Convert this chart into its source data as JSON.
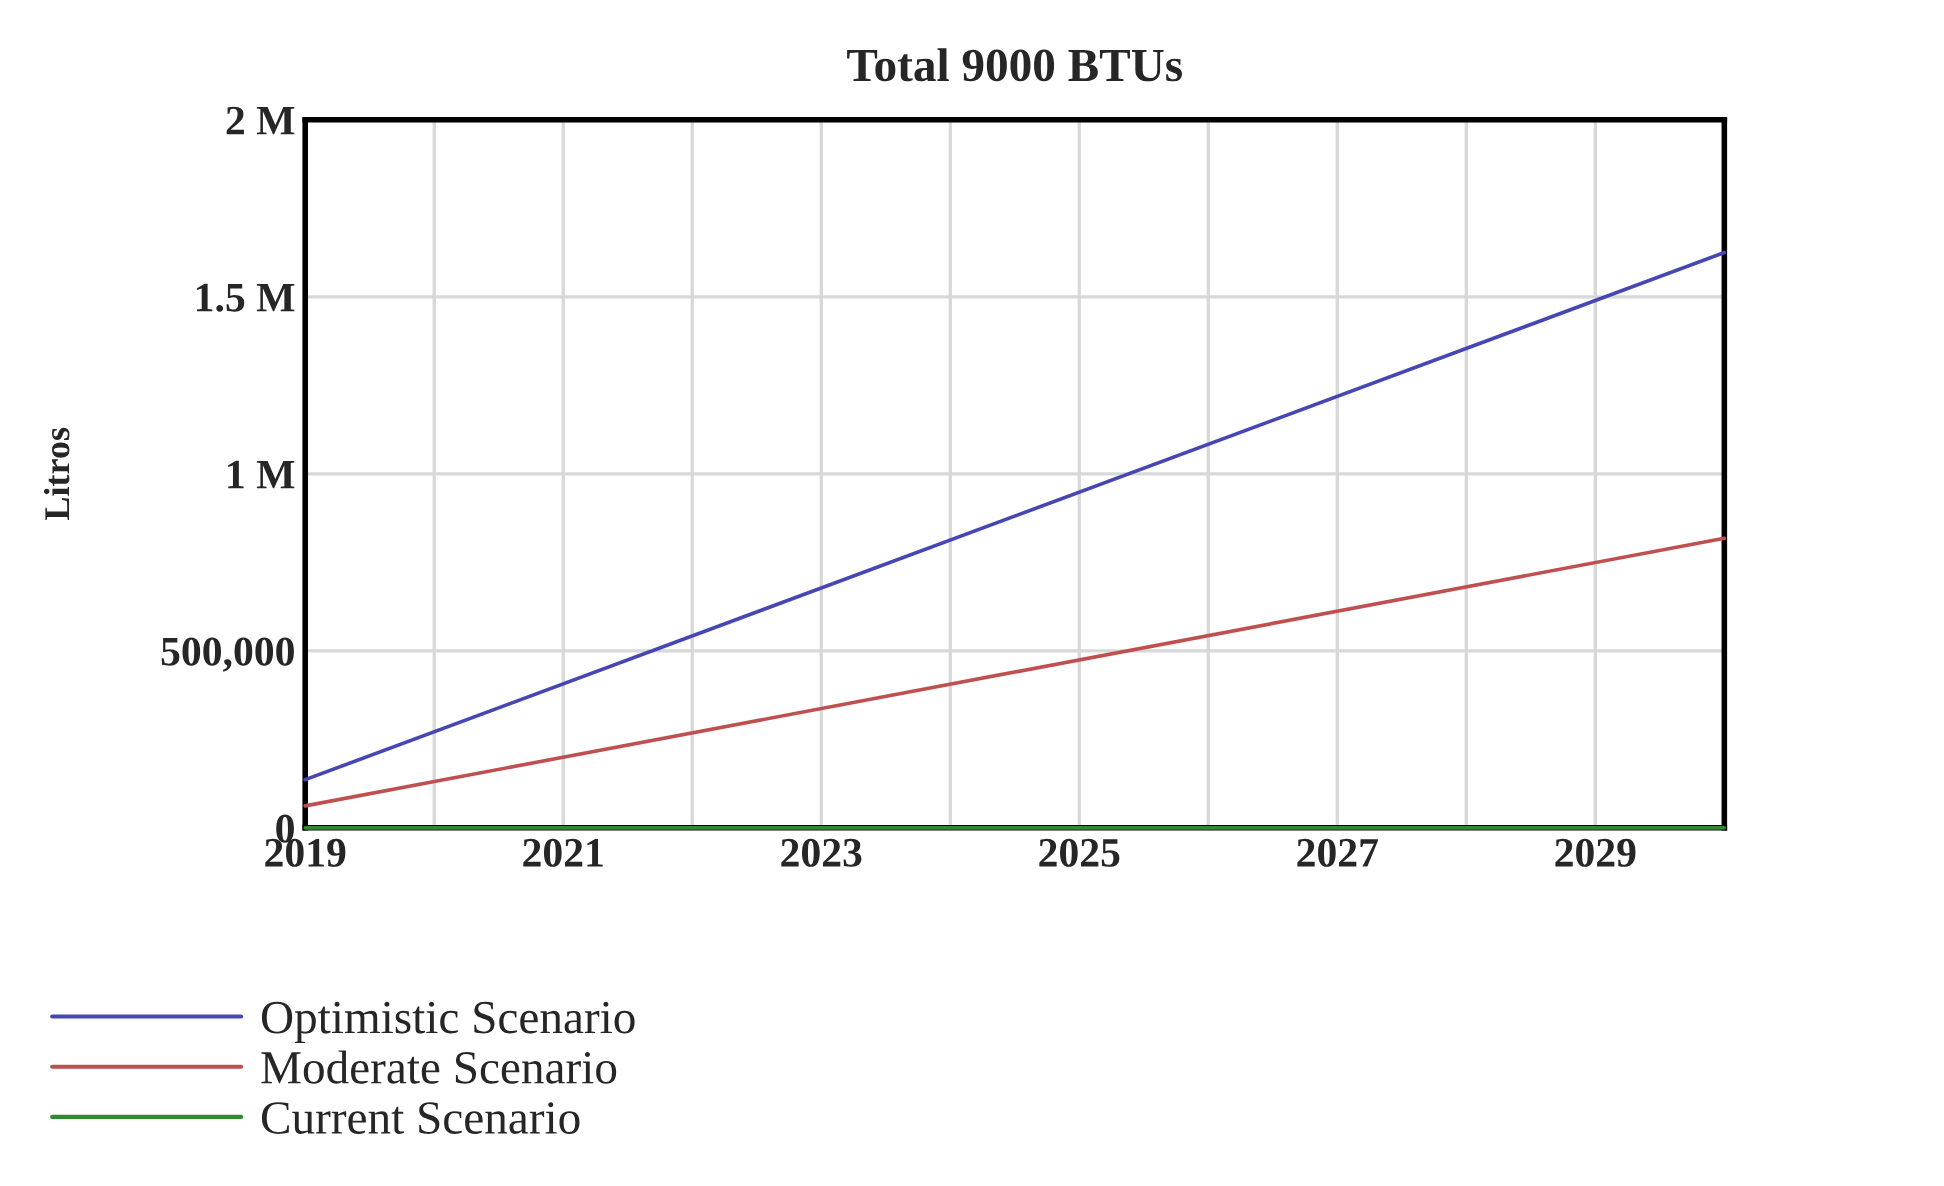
{
  "chart_data": {
    "type": "line",
    "title": "Total 9000 BTUs",
    "ylabel": "Litros",
    "x": [
      2019,
      2030
    ],
    "series": [
      {
        "name": "Optimistic Scenario",
        "color": "#4646b4",
        "values": [
          136000,
          1625000
        ]
      },
      {
        "name": "Moderate Scenario",
        "color": "#c05050",
        "values": [
          62000,
          818000
        ]
      },
      {
        "name": "Current Scenario",
        "color": "#2e8b2e",
        "values": [
          0,
          0
        ]
      }
    ],
    "xlim": [
      2019,
      2030
    ],
    "xticks": [
      2019,
      {
        "value": 2020,
        "label": null
      },
      2021,
      {
        "value": 2022,
        "label": null
      },
      2023,
      {
        "value": 2024,
        "label": null
      },
      2025,
      {
        "value": 2026,
        "label": null
      },
      2027,
      {
        "value": 2028,
        "label": null
      },
      2029,
      {
        "value": 2030,
        "label": null
      }
    ],
    "ylim": [
      0,
      2000000
    ],
    "yticks": [
      0,
      {
        "value": 500000,
        "label": "500,000"
      },
      {
        "value": 1000000,
        "label": "1 M"
      },
      {
        "value": 1500000,
        "label": "1.5 M"
      },
      {
        "value": 2000000,
        "label": "2 M"
      }
    ],
    "grid": true,
    "legend": "bottom",
    "line_style": "solid"
  }
}
